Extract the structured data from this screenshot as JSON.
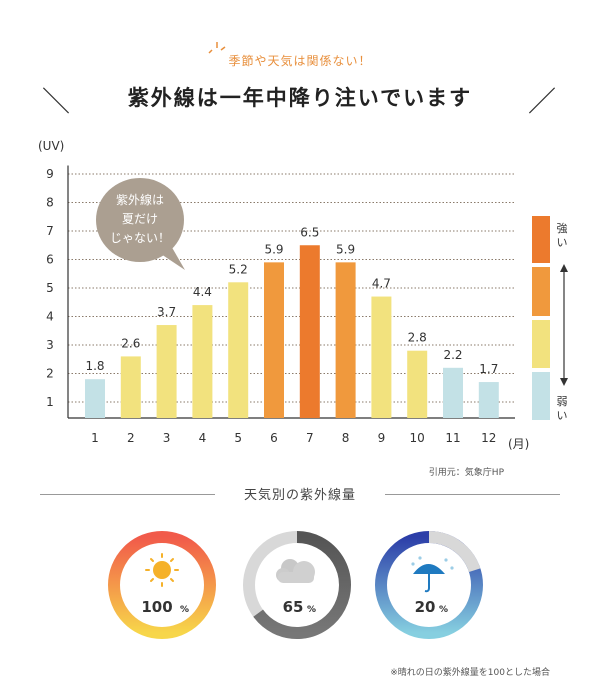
{
  "header": {
    "subtitle": "季節や天気は関係ない！",
    "title": "紫外線は一年中降り注いでいます",
    "slash_left": "＼",
    "slash_right": "／"
  },
  "chart_data": {
    "type": "bar",
    "categories": [
      "1",
      "2",
      "3",
      "4",
      "5",
      "6",
      "7",
      "8",
      "9",
      "10",
      "11",
      "12"
    ],
    "values": [
      1.8,
      2.6,
      3.7,
      4.4,
      5.2,
      5.9,
      6.5,
      5.9,
      4.7,
      2.8,
      2.2,
      1.7
    ],
    "data_labels": [
      "1.8",
      "2.6",
      "3.7",
      "4.4",
      "5.2",
      "5.9",
      "6.5",
      "5.9",
      "4.7",
      "2.8",
      "2.2",
      "1.7"
    ],
    "ylabel": "(UV)",
    "xlabel": "(月)",
    "yticks": [
      "1",
      "2",
      "3",
      "4",
      "5",
      "6",
      "7",
      "8",
      "9"
    ],
    "ylim": [
      0.5,
      9
    ],
    "bar_colors": [
      "#c3e1e6",
      "#f2e27e",
      "#f2e27e",
      "#f2e27e",
      "#f2e27e",
      "#f0993d",
      "#ec7a2d",
      "#f0993d",
      "#f2e27e",
      "#f2e27e",
      "#c3e1e6",
      "#c3e1e6"
    ],
    "speech_bubble": [
      "紫外線は",
      "夏だけ",
      "じゃない！"
    ],
    "legend": {
      "strong_label": "強い",
      "weak_label": "弱い",
      "colors": [
        "#ec7a2d",
        "#f0993d",
        "#f2e27e",
        "#c3e1e6"
      ]
    }
  },
  "source": "引用元：気象庁HP",
  "weather_section": {
    "title": "天気別の紫外線量",
    "items": [
      {
        "name": "sunny",
        "percent": 100,
        "label": "100",
        "unit": "%",
        "color_start": "#f7d64a",
        "color_end": "#f15a4a"
      },
      {
        "name": "cloudy",
        "percent": 65,
        "label": "65",
        "unit": "%",
        "color_start": "#888888",
        "color_end": "#555555"
      },
      {
        "name": "rainy",
        "percent": 20,
        "label": "20",
        "unit": "%",
        "color_start": "#86cfe0",
        "color_end": "#2c3ea8"
      }
    ],
    "note": "※晴れの日の紫外線量を100とした場合"
  }
}
